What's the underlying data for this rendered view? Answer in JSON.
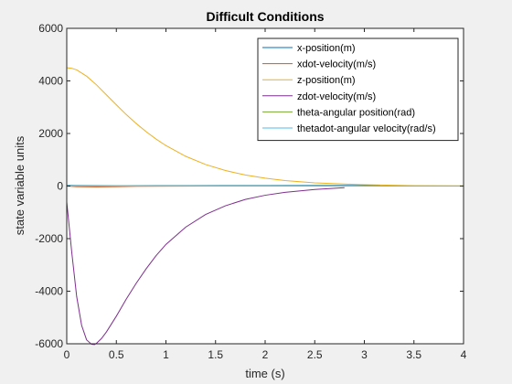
{
  "chart_data": {
    "type": "line",
    "title": "Difficult Conditions",
    "xlabel": "time (s)",
    "ylabel": "state variable units",
    "xlim": [
      0,
      4
    ],
    "ylim": [
      -6000,
      6000
    ],
    "xticks": [
      "0",
      "0.5",
      "1",
      "1.5",
      "2",
      "2.5",
      "3",
      "3.5",
      "4"
    ],
    "yticks": [
      "6000",
      "4000",
      "2000",
      "0",
      "-2000",
      "-4000",
      "-6000"
    ],
    "grid": false,
    "legend_position": "top-right",
    "series": [
      {
        "name": "x-position(m)",
        "color": "#0072bd",
        "x": [
          0,
          0.1,
          0.3,
          0.5,
          0.6,
          0.9,
          1.2,
          1.6,
          2.0,
          2.5,
          3.0,
          3.16
        ],
        "y": [
          20,
          18,
          12,
          8,
          8,
          12,
          14,
          16,
          18,
          20,
          20,
          20
        ]
      },
      {
        "name": "xdot-velocity(m/s)",
        "color": "#d95319",
        "x": [
          0,
          0.1,
          0.3,
          0.5,
          0.7,
          1.0,
          1.5,
          2.0,
          2.5,
          2.85
        ],
        "y": [
          0,
          -20,
          -30,
          -20,
          -10,
          -5,
          -2,
          0,
          0,
          0
        ]
      },
      {
        "name": "z-position(m)",
        "color": "#edb120",
        "x": [
          0,
          0.05,
          0.1,
          0.2,
          0.3,
          0.4,
          0.5,
          0.6,
          0.7,
          0.8,
          0.9,
          1.0,
          1.2,
          1.4,
          1.6,
          1.8,
          2.0,
          2.2,
          2.5,
          3.0,
          3.5,
          4.0
        ],
        "y": [
          4500,
          4480,
          4420,
          4180,
          3850,
          3470,
          3090,
          2720,
          2380,
          2070,
          1790,
          1540,
          1130,
          820,
          590,
          420,
          300,
          210,
          120,
          50,
          15,
          5
        ]
      },
      {
        "name": "zdot-velocity(m/s)",
        "color": "#7e2f8e",
        "x": [
          0,
          0.05,
          0.1,
          0.15,
          0.2,
          0.25,
          0.28,
          0.3,
          0.35,
          0.4,
          0.5,
          0.6,
          0.7,
          0.8,
          0.9,
          1.0,
          1.2,
          1.4,
          1.6,
          1.8,
          2.0,
          2.2,
          2.5,
          2.8
        ],
        "y": [
          -600,
          -2500,
          -4200,
          -5300,
          -5850,
          -6020,
          -6030,
          -5980,
          -5800,
          -5550,
          -4950,
          -4300,
          -3700,
          -3150,
          -2650,
          -2220,
          -1560,
          -1080,
          -750,
          -510,
          -350,
          -240,
          -130,
          -60
        ]
      },
      {
        "name": "theta-angular position(rad)",
        "color": "#77ac30",
        "x": [
          0,
          0.5,
          1.0,
          1.5,
          2.0,
          2.5,
          3.0,
          3.5,
          4.0
        ],
        "y": [
          5,
          5,
          5,
          5,
          5,
          5,
          5,
          5,
          5
        ]
      },
      {
        "name": "thetadot-angular velocity(rad/s)",
        "color": "#4dbeee",
        "x": [
          0,
          0.5,
          1.0,
          1.5,
          2.0,
          2.5,
          3.0,
          3.5,
          4.0
        ],
        "y": [
          0,
          0,
          0,
          0,
          0,
          0,
          0,
          0,
          0
        ]
      }
    ]
  }
}
